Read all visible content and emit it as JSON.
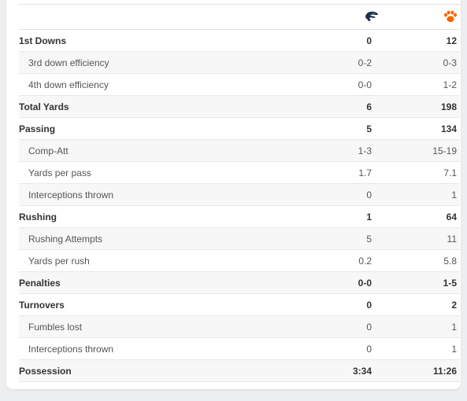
{
  "teams": {
    "away": {
      "icon": "panther-logo-icon",
      "color": "#1b2f4a"
    },
    "home": {
      "icon": "tiger-paw-logo-icon",
      "color": "#f56600"
    }
  },
  "rows": [
    {
      "label": "1st Downs",
      "away": "0",
      "home": "12",
      "type": "main"
    },
    {
      "label": "3rd down efficiency",
      "away": "0-2",
      "home": "0-3",
      "type": "sub"
    },
    {
      "label": "4th down efficiency",
      "away": "0-0",
      "home": "1-2",
      "type": "sub"
    },
    {
      "label": "Total Yards",
      "away": "6",
      "home": "198",
      "type": "main"
    },
    {
      "label": "Passing",
      "away": "5",
      "home": "134",
      "type": "main"
    },
    {
      "label": "Comp-Att",
      "away": "1-3",
      "home": "15-19",
      "type": "sub"
    },
    {
      "label": "Yards per pass",
      "away": "1.7",
      "home": "7.1",
      "type": "sub"
    },
    {
      "label": "Interceptions thrown",
      "away": "0",
      "home": "1",
      "type": "sub"
    },
    {
      "label": "Rushing",
      "away": "1",
      "home": "64",
      "type": "main"
    },
    {
      "label": "Rushing Attempts",
      "away": "5",
      "home": "11",
      "type": "sub"
    },
    {
      "label": "Yards per rush",
      "away": "0.2",
      "home": "5.8",
      "type": "sub"
    },
    {
      "label": "Penalties",
      "away": "0-0",
      "home": "1-5",
      "type": "main"
    },
    {
      "label": "Turnovers",
      "away": "0",
      "home": "2",
      "type": "main"
    },
    {
      "label": "Fumbles lost",
      "away": "0",
      "home": "1",
      "type": "sub"
    },
    {
      "label": "Interceptions thrown",
      "away": "0",
      "home": "1",
      "type": "sub"
    },
    {
      "label": "Possession",
      "away": "3:34",
      "home": "11:26",
      "type": "main"
    }
  ]
}
